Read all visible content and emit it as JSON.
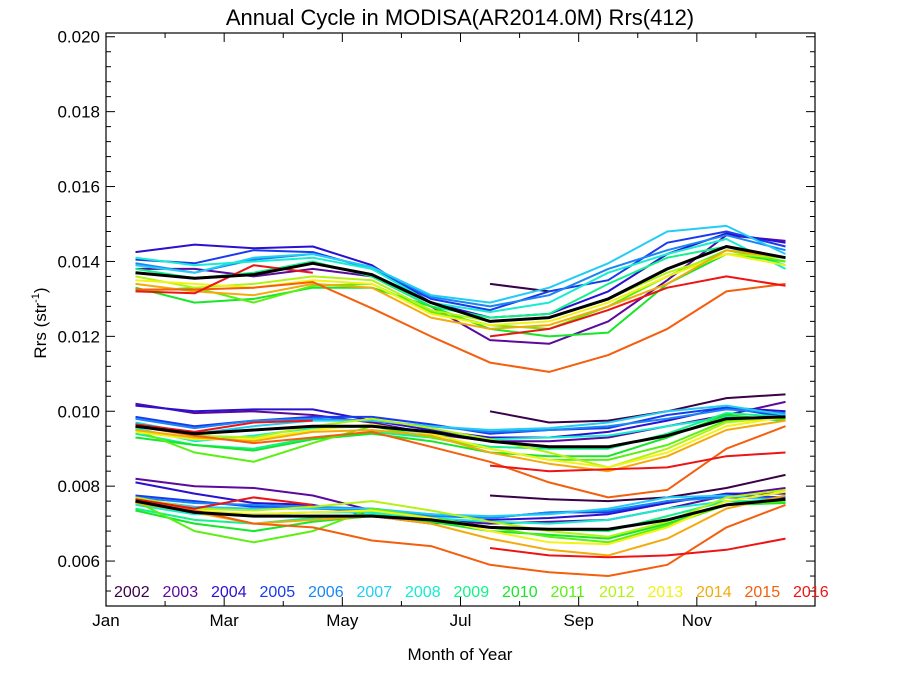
{
  "chart_data": {
    "type": "line",
    "title": "Annual Cycle in MODISA(AR2014.0M) Rrs(412)",
    "xlabel": "Month of Year",
    "ylabel_main": "Rrs (str",
    "ylabel_sup": "-1",
    "ylabel_close": ")",
    "xlim": [
      0,
      12
    ],
    "ylim": [
      0.0048,
      0.0201
    ],
    "x_ticks": [
      {
        "value": 0,
        "label": "Jan"
      },
      {
        "value": 2,
        "label": "Mar"
      },
      {
        "value": 4,
        "label": "May"
      },
      {
        "value": 6,
        "label": "Jul"
      },
      {
        "value": 8,
        "label": "Sep"
      },
      {
        "value": 10,
        "label": "Nov"
      }
    ],
    "y_ticks": [
      {
        "value": 0.006,
        "label": "0.006"
      },
      {
        "value": 0.008,
        "label": "0.008"
      },
      {
        "value": 0.01,
        "label": "0.010"
      },
      {
        "value": 0.012,
        "label": "0.012"
      },
      {
        "value": 0.014,
        "label": "0.014"
      },
      {
        "value": 0.016,
        "label": "0.016"
      },
      {
        "value": 0.018,
        "label": "0.018"
      },
      {
        "value": 0.02,
        "label": "0.020"
      }
    ],
    "grid": false,
    "legend_placement": "bottom-inside",
    "x": [
      0.5,
      1.5,
      2.5,
      3.5,
      4.5,
      5.5,
      6.5,
      7.5,
      8.5,
      9.5,
      10.5,
      11.5
    ],
    "years": [
      {
        "name": "2002",
        "color": "#3a0048"
      },
      {
        "name": "2003",
        "color": "#5a0a9c"
      },
      {
        "name": "2004",
        "color": "#2a10d0"
      },
      {
        "name": "2005",
        "color": "#1a3aee"
      },
      {
        "name": "2006",
        "color": "#1a86f4"
      },
      {
        "name": "2007",
        "color": "#22cdf4"
      },
      {
        "name": "2008",
        "color": "#16ecd0"
      },
      {
        "name": "2009",
        "color": "#12f28a"
      },
      {
        "name": "2010",
        "color": "#18e628"
      },
      {
        "name": "2011",
        "color": "#5af012"
      },
      {
        "name": "2012",
        "color": "#b4f214"
      },
      {
        "name": "2013",
        "color": "#f4f214"
      },
      {
        "name": "2014",
        "color": "#f4aa0c"
      },
      {
        "name": "2015",
        "color": "#f45e0c"
      },
      {
        "name": "2016",
        "color": "#ee1414"
      }
    ],
    "mean_series_color": "#000000",
    "groups": [
      {
        "mean": [
          0.0137,
          0.01355,
          0.01365,
          0.01395,
          0.01365,
          0.0129,
          0.0124,
          0.0125,
          0.013,
          0.0138,
          0.0144,
          0.0141
        ],
        "series": [
          {
            "year": "2002",
            "values": [
              null,
              null,
              null,
              null,
              null,
              null,
              0.0134,
              0.0132,
              null,
              null,
              null,
              null
            ]
          },
          {
            "year": "2003",
            "values": [
              0.0138,
              0.0138,
              0.0136,
              0.0138,
              0.0136,
              0.0128,
              0.0119,
              0.0118,
              0.0124,
              0.0135,
              0.0147,
              0.01455
            ]
          },
          {
            "year": "2004",
            "values": [
              0.01425,
              0.01445,
              0.01435,
              0.0144,
              0.0139,
              0.0129,
              0.0125,
              0.0126,
              0.0132,
              0.0142,
              0.01475,
              0.0145
            ]
          },
          {
            "year": "2005",
            "values": [
              0.01405,
              0.01395,
              0.0143,
              0.01425,
              0.0138,
              0.013,
              0.0127,
              0.0132,
              0.0135,
              0.0145,
              0.0148,
              0.0144
            ]
          },
          {
            "year": "2006",
            "values": [
              0.01395,
              0.0137,
              0.01405,
              0.0142,
              0.01385,
              0.01305,
              0.0128,
              0.0131,
              0.0138,
              0.0143,
              0.0147,
              0.0143
            ]
          },
          {
            "year": "2007",
            "values": [
              0.0139,
              0.0137,
              0.0141,
              0.0142,
              0.01385,
              0.0131,
              0.0129,
              0.0133,
              0.01395,
              0.0148,
              0.01495,
              0.0142
            ]
          },
          {
            "year": "2008",
            "values": [
              0.0141,
              0.0139,
              0.014,
              0.0141,
              0.0138,
              0.0129,
              0.01265,
              0.0129,
              0.0137,
              0.0142,
              0.0146,
              0.0138
            ]
          },
          {
            "year": "2009",
            "values": [
              0.0138,
              0.01355,
              0.0137,
              0.014,
              0.0136,
              0.0128,
              0.0125,
              0.0126,
              0.0134,
              0.0141,
              0.0144,
              0.0139
            ]
          },
          {
            "year": "2010",
            "values": [
              0.0133,
              0.0129,
              0.013,
              0.0133,
              0.0133,
              0.0128,
              0.0122,
              0.012,
              0.0121,
              0.0134,
              0.0142,
              0.014
            ]
          },
          {
            "year": "2011",
            "values": [
              0.0132,
              0.0133,
              0.0129,
              0.01335,
              0.0134,
              0.01265,
              0.0123,
              0.0122,
              0.0128,
              0.0136,
              0.0143,
              0.014
            ]
          },
          {
            "year": "2012",
            "values": [
              0.0136,
              0.0133,
              0.0134,
              0.0136,
              0.0135,
              0.0127,
              0.0124,
              0.0125,
              0.013,
              0.0137,
              0.0142,
              0.0141
            ]
          },
          {
            "year": "2013",
            "values": [
              0.0135,
              0.0134,
              0.0133,
              0.0135,
              0.0134,
              0.0126,
              0.0123,
              0.0124,
              0.0129,
              0.0136,
              0.0142,
              0.0139
            ]
          },
          {
            "year": "2014",
            "values": [
              0.0134,
              0.0132,
              0.0131,
              0.0134,
              0.0133,
              0.0125,
              0.0122,
              0.0123,
              0.0128,
              0.0134,
              0.0143,
              0.0141
            ]
          },
          {
            "year": "2015",
            "values": [
              0.01325,
              0.01325,
              0.0133,
              0.01345,
              0.01275,
              0.012,
              0.0113,
              0.01105,
              0.0115,
              0.0122,
              0.0132,
              0.0134
            ]
          },
          {
            "year": "2016",
            "values": [
              0.0132,
              0.01315,
              0.0139,
              0.0137,
              null,
              null,
              0.012,
              0.0122,
              0.0127,
              0.0133,
              0.0136,
              0.01335
            ]
          }
        ]
      },
      {
        "mean": [
          0.0096,
          0.0094,
          0.0095,
          0.0096,
          0.0096,
          0.00945,
          0.0092,
          0.00905,
          0.00905,
          0.00935,
          0.0098,
          0.00985
        ],
        "series": [
          {
            "year": "2002",
            "values": [
              null,
              null,
              null,
              null,
              null,
              null,
              0.01,
              0.0097,
              0.00975,
              0.01,
              0.01035,
              0.01045
            ]
          },
          {
            "year": "2003",
            "values": [
              0.0102,
              0.00995,
              0.01,
              0.0099,
              0.0097,
              0.0094,
              0.0092,
              0.0092,
              0.0093,
              0.0096,
              0.0099,
              0.01025
            ]
          },
          {
            "year": "2004",
            "values": [
              0.01015,
              0.01,
              0.01005,
              0.01005,
              0.00975,
              0.0095,
              0.0093,
              0.0093,
              0.00945,
              0.00975,
              0.0101,
              0.01
            ]
          },
          {
            "year": "2005",
            "values": [
              0.00985,
              0.0096,
              0.00975,
              0.00985,
              0.00985,
              0.00965,
              0.0094,
              0.0095,
              0.00955,
              0.0099,
              0.0101,
              0.00985
            ]
          },
          {
            "year": "2006",
            "values": [
              0.0098,
              0.00955,
              0.00975,
              0.0098,
              0.00975,
              0.0096,
              0.00945,
              0.0095,
              0.0096,
              0.0098,
              0.01005,
              0.00995
            ]
          },
          {
            "year": "2007",
            "values": [
              0.0097,
              0.0094,
              0.0096,
              0.00975,
              0.00975,
              0.0096,
              0.0095,
              0.00955,
              0.0097,
              0.01,
              0.01015,
              0.0099
            ]
          },
          {
            "year": "2008",
            "values": [
              0.00955,
              0.0092,
              0.00935,
              0.00955,
              0.0096,
              0.0094,
              0.00925,
              0.0093,
              0.00935,
              0.0096,
              0.00985,
              0.00975
            ]
          },
          {
            "year": "2009",
            "values": [
              0.0094,
              0.0091,
              0.009,
              0.0093,
              0.00945,
              0.0093,
              0.00905,
              0.009,
              0.009,
              0.0094,
              0.00995,
              0.00985
            ]
          },
          {
            "year": "2010",
            "values": [
              0.0093,
              0.0091,
              0.00895,
              0.00925,
              0.0094,
              0.0092,
              0.0089,
              0.0088,
              0.0088,
              0.0093,
              0.0099,
              0.00975
            ]
          },
          {
            "year": "2011",
            "values": [
              0.0095,
              0.0089,
              0.00865,
              0.00915,
              0.0096,
              0.0093,
              0.009,
              0.0087,
              0.0087,
              0.0091,
              0.00975,
              0.0098
            ]
          },
          {
            "year": "2012",
            "values": [
              0.00965,
              0.00935,
              0.0093,
              0.0096,
              0.0098,
              0.00955,
              0.00925,
              0.0089,
              0.0085,
              0.009,
              0.0097,
              0.00985
            ]
          },
          {
            "year": "2013",
            "values": [
              0.00945,
              0.00925,
              0.00925,
              0.0095,
              0.00965,
              0.0094,
              0.009,
              0.0087,
              0.0085,
              0.0089,
              0.0096,
              0.00985
            ]
          },
          {
            "year": "2014",
            "values": [
              0.0095,
              0.0093,
              0.0092,
              0.00945,
              0.0095,
              0.00935,
              0.0089,
              0.0086,
              0.0084,
              0.0088,
              0.0095,
              0.00975
            ]
          },
          {
            "year": "2015",
            "values": [
              0.0096,
              0.00935,
              0.00915,
              0.0093,
              0.00945,
              0.00905,
              0.00865,
              0.0081,
              0.0077,
              0.0079,
              0.009,
              0.0096
            ]
          },
          {
            "year": "2016",
            "values": [
              0.00965,
              0.00945,
              0.0097,
              0.00975,
              null,
              null,
              0.00855,
              0.0084,
              0.00845,
              0.0085,
              0.0088,
              0.0089
            ]
          }
        ]
      },
      {
        "mean": [
          0.0076,
          0.0073,
          0.0072,
          0.0072,
          0.0072,
          0.0071,
          0.0069,
          0.00685,
          0.00685,
          0.0071,
          0.0075,
          0.00765
        ],
        "series": [
          {
            "year": "2002",
            "values": [
              null,
              null,
              null,
              null,
              null,
              null,
              0.00775,
              0.00765,
              0.0076,
              0.0077,
              0.00795,
              0.0083
            ]
          },
          {
            "year": "2003",
            "values": [
              0.0082,
              0.008,
              0.00795,
              0.00775,
              0.00735,
              0.0071,
              0.007,
              0.00705,
              0.0071,
              0.0074,
              0.00775,
              0.00795
            ]
          },
          {
            "year": "2004",
            "values": [
              0.0081,
              0.0078,
              0.00755,
              0.0075,
              0.0072,
              0.007,
              0.0071,
              0.00715,
              0.00725,
              0.00755,
              0.0078,
              0.0078
            ]
          },
          {
            "year": "2005",
            "values": [
              0.00775,
              0.0076,
              0.00745,
              0.0074,
              0.00735,
              0.00725,
              0.00715,
              0.0073,
              0.0073,
              0.0076,
              0.00775,
              0.0077
            ]
          },
          {
            "year": "2006",
            "values": [
              0.0077,
              0.00755,
              0.0075,
              0.00745,
              0.0074,
              0.0072,
              0.00715,
              0.0073,
              0.00735,
              0.0076,
              0.0077,
              0.00765
            ]
          },
          {
            "year": "2007",
            "values": [
              0.00765,
              0.00745,
              0.0074,
              0.0074,
              0.0074,
              0.00725,
              0.0072,
              0.00725,
              0.0074,
              0.0077,
              0.00775,
              0.0076
            ]
          },
          {
            "year": "2008",
            "values": [
              0.0075,
              0.00725,
              0.00725,
              0.0073,
              0.0073,
              0.00715,
              0.00705,
              0.007,
              0.0071,
              0.0074,
              0.0076,
              0.00755
            ]
          },
          {
            "year": "2009",
            "values": [
              0.0074,
              0.0071,
              0.007,
              0.00715,
              0.00725,
              0.0071,
              0.0069,
              0.00685,
              0.0068,
              0.0072,
              0.0076,
              0.0076
            ]
          },
          {
            "year": "2010",
            "values": [
              0.00735,
              0.007,
              0.0068,
              0.00705,
              0.0072,
              0.00705,
              0.0068,
              0.0067,
              0.0066,
              0.007,
              0.0075,
              0.00755
            ]
          },
          {
            "year": "2011",
            "values": [
              0.0076,
              0.0068,
              0.0065,
              0.0068,
              0.0074,
              0.00715,
              0.0069,
              0.00665,
              0.0065,
              0.00695,
              0.0075,
              0.0076
            ]
          },
          {
            "year": "2012",
            "values": [
              0.0077,
              0.0074,
              0.00735,
              0.00745,
              0.0076,
              0.00735,
              0.00705,
              0.0068,
              0.00665,
              0.00705,
              0.0077,
              0.0079
            ]
          },
          {
            "year": "2013",
            "values": [
              0.00755,
              0.00735,
              0.00725,
              0.0073,
              0.00735,
              0.00715,
              0.0068,
              0.0065,
              0.00645,
              0.0069,
              0.0076,
              0.00785
            ]
          },
          {
            "year": "2014",
            "values": [
              0.00755,
              0.0073,
              0.007,
              0.0071,
              0.0072,
              0.007,
              0.0066,
              0.0063,
              0.00615,
              0.0066,
              0.0074,
              0.00775
            ]
          },
          {
            "year": "2015",
            "values": [
              0.0076,
              0.00735,
              0.007,
              0.0069,
              0.00655,
              0.0064,
              0.0059,
              0.0057,
              0.0056,
              0.0059,
              0.0069,
              0.0075
            ]
          },
          {
            "year": "2016",
            "values": [
              0.00765,
              0.0074,
              0.0077,
              0.0075,
              null,
              null,
              0.00635,
              0.00615,
              0.0061,
              0.00615,
              0.0063,
              0.0066
            ]
          }
        ]
      }
    ]
  }
}
